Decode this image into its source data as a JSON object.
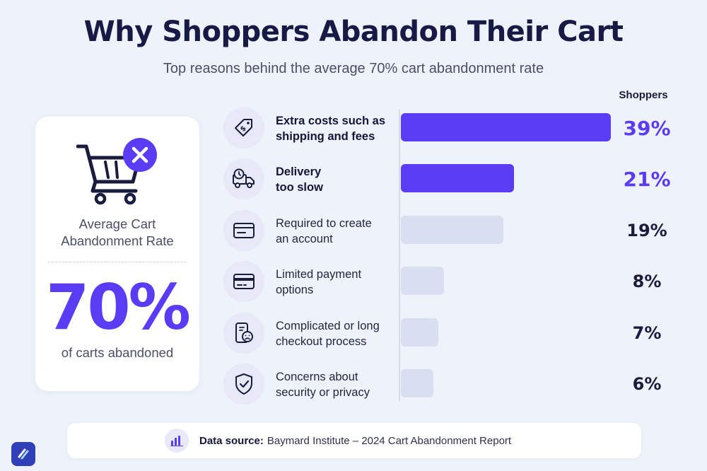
{
  "chart_data": {
    "type": "bar",
    "orientation": "horizontal",
    "title": "Why Shoppers Abandon Their Cart",
    "subtitle": "Top reasons behind the average 70% cart abandonment rate",
    "value_header": "Shoppers",
    "categories": [
      "Extra costs such as\nshipping and fees",
      "Delivery\ntoo slow",
      "Required to create\nan account",
      "Limited payment\noptions",
      "Complicated or long\ncheckout process",
      "Concerns about\nsecurity or privacy"
    ],
    "values": [
      39,
      21,
      19,
      8,
      7,
      6
    ],
    "value_labels": [
      "39%",
      "21%",
      "19%",
      "8%",
      "7%",
      "6%"
    ],
    "highlighted": [
      true,
      true,
      false,
      false,
      false,
      false
    ],
    "icons": [
      "price-tag-icon",
      "delivery-truck-icon",
      "card-form-icon",
      "credit-card-icon",
      "phone-frown-icon",
      "shield-check-icon"
    ],
    "xlim": [
      0,
      39
    ],
    "colors": {
      "highlight": "#5b3cf5",
      "muted": "#d9dff1"
    }
  },
  "summary": {
    "label": "Average Cart\nAbandonment Rate",
    "value": "70%",
    "caption": "of carts abandoned"
  },
  "source": {
    "label": "Data source:",
    "text": "Baymard Institute – 2024 Cart Abandonment Report"
  }
}
